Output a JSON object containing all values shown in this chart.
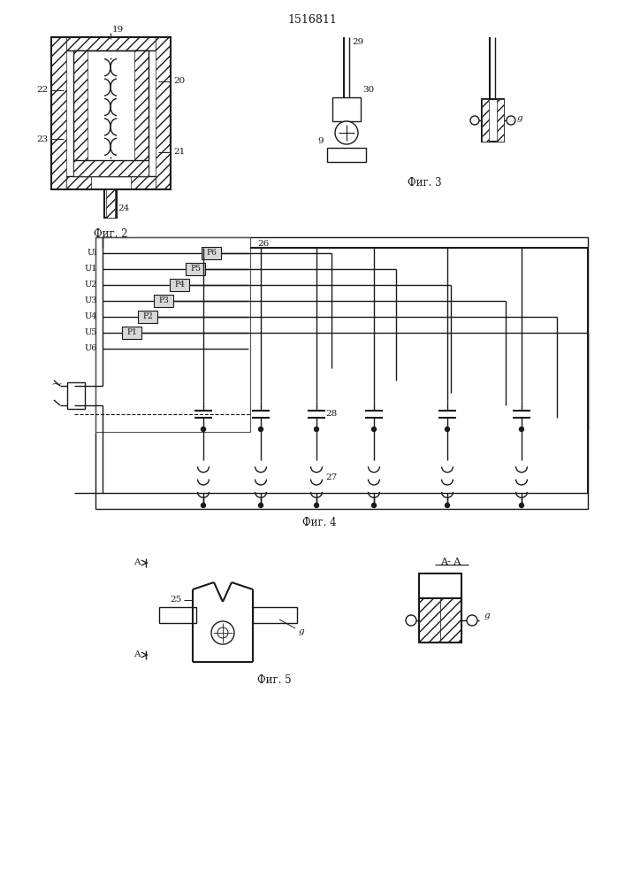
{
  "title": "1516811",
  "bg_color": "#ffffff",
  "line_color": "#1a1a1a",
  "fig2_caption": "Фиг. 2",
  "fig3_caption": "Фиг. 3",
  "fig4_caption": "Фиг. 4",
  "fig5_caption": "Фиг. 5",
  "lbl_19": "19",
  "lbl_20": "20",
  "lbl_21": "21",
  "lbl_22": "22",
  "lbl_23": "23",
  "lbl_24": "24",
  "lbl_29a": "29",
  "lbl_29b": "29",
  "lbl_30": "30",
  "lbl_9a": "9",
  "lbl_9b": "g",
  "lbl_9c": "g",
  "lbl_Ui": "Ui",
  "lbl_U1": "U1",
  "lbl_U2": "U2",
  "lbl_U3": "U3",
  "lbl_U4": "U4",
  "lbl_U5": "U5",
  "lbl_U6": "U6",
  "lbl_26": "26",
  "lbl_P1": "P1",
  "lbl_P2": "P2",
  "lbl_P3": "P3",
  "lbl_P4": "P4",
  "lbl_P5": "P5",
  "lbl_P6": "P6",
  "lbl_27": "27",
  "lbl_28": "28",
  "lbl_25": "25",
  "lbl_A": "A",
  "lbl_AA": "A- A"
}
